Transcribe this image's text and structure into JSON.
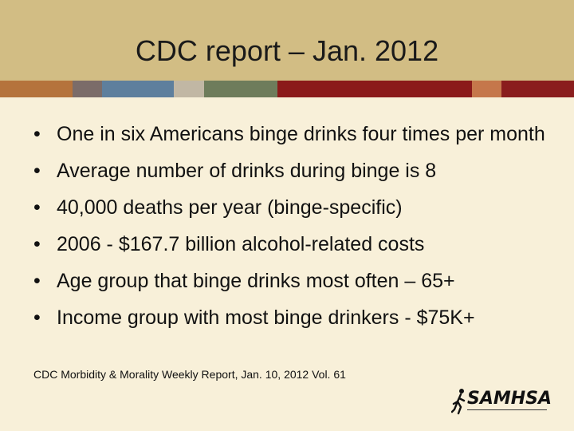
{
  "slide": {
    "title": "CDC report – Jan. 2012",
    "bullets": [
      "One in six Americans binge drinks four times per month",
      "Average number of drinks during binge is 8",
      "40,000 deaths per year (binge-specific)",
      "2006 - $167.7 billion alcohol-related costs",
      "Age group that binge drinks most often – 65+",
      "Income group with most binge drinkers - $75K+"
    ],
    "bullet_marker": "•",
    "source": "CDC Morbidity & Morality Weekly Report, Jan. 10, 2012 Vol. 61"
  },
  "logo": {
    "text": "SAMHSA",
    "icon": "running-figure-icon"
  },
  "colors": {
    "background": "#f8f0d9",
    "title_bar": "#d2bd84",
    "stripe": [
      "#b5733c",
      "#7b6c69",
      "#5e7f9d",
      "#c1b7a4",
      "#6e7c5b",
      "#8b1a1a",
      "#c5774b",
      "#8a1d1d"
    ]
  }
}
